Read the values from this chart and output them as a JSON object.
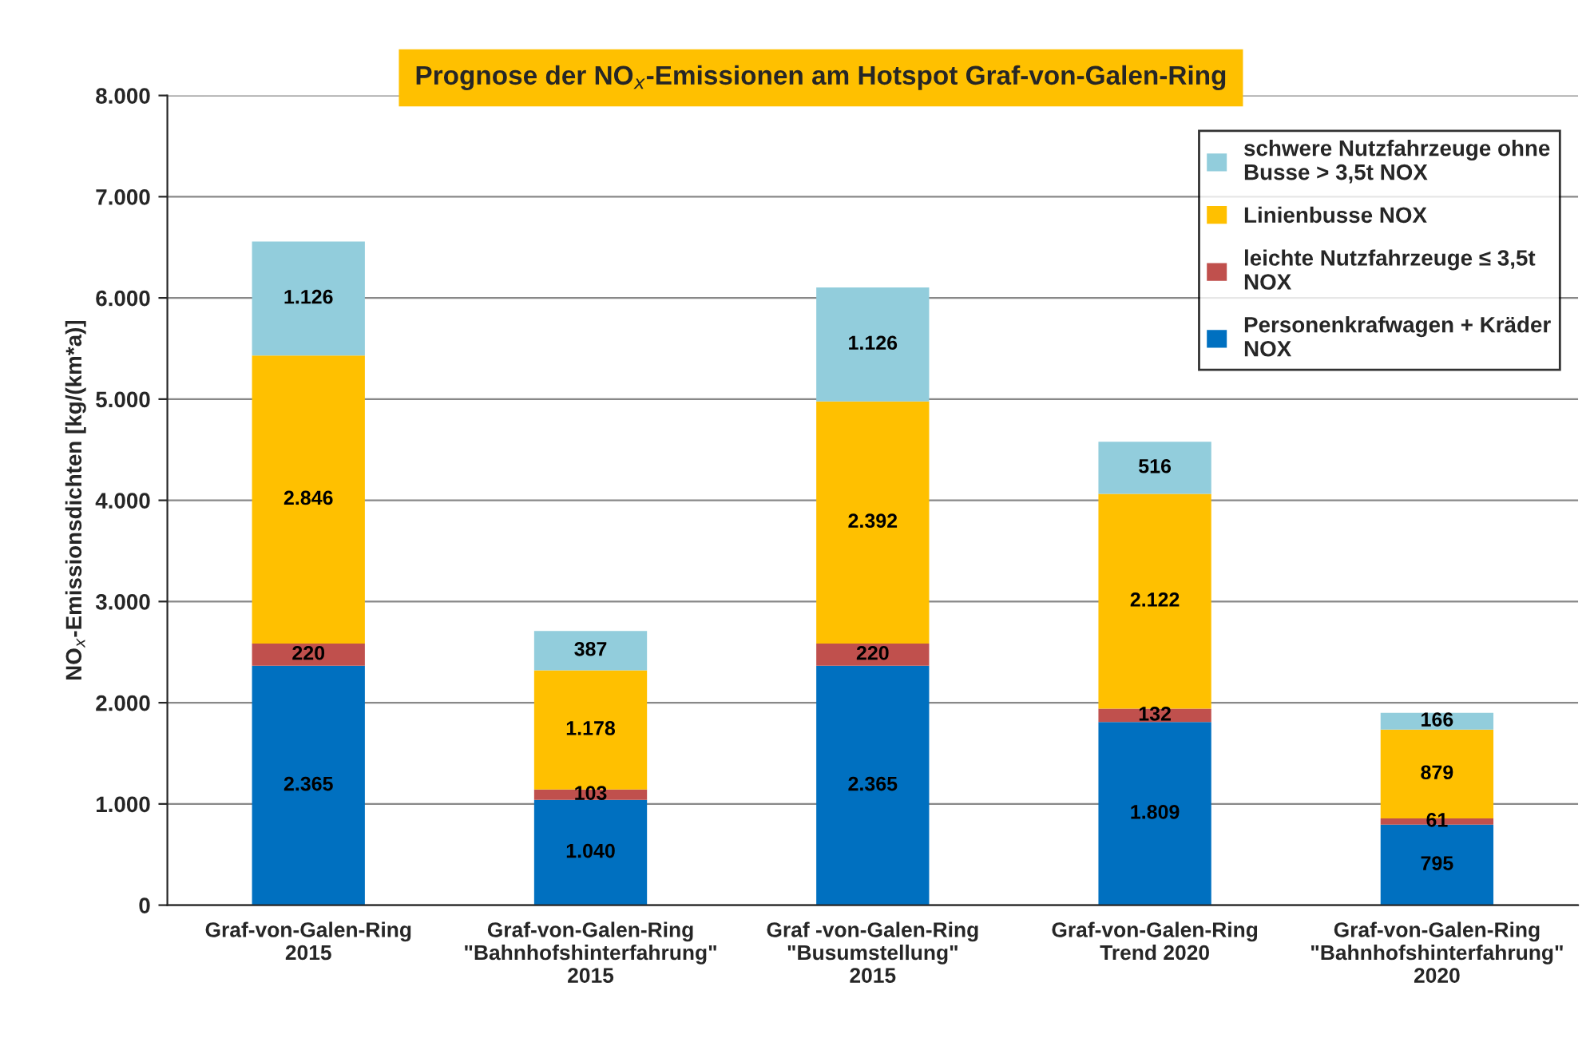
{
  "chart_data": {
    "type": "bar",
    "stacked": true,
    "title": "Prognose der NO$_{x}$-Emissionen am Hotspot Graf-von-Galen-Ring",
    "ylabel": "NO$_{x}$-Emissionsdichten [kg/(km*a)]",
    "categories": [
      "Graf-von-Galen-Ring\n2015",
      "Graf-von-Galen-Ring\n\"Bahnhofshinterfahrung\"\n2015",
      "Graf -von-Galen-Ring\n\"Busumstellung\"\n2015",
      "Graf-von-Galen-Ring\nTrend 2020",
      "Graf-von-Galen-Ring\n\"Bahnhofshinterfahrung\"\n2020"
    ],
    "series": [
      {
        "name": "Personenkrafwagen + Kräder\nNOX",
        "color": "#0070c0",
        "values": [
          2365,
          1040,
          2365,
          1809,
          795
        ],
        "value_labels": [
          "2.365",
          "1.040",
          "2.365",
          "1.809",
          "795"
        ]
      },
      {
        "name": "leichte Nutzfahrzeuge ≤ 3,5t\nNOX",
        "color": "#c0504d",
        "values": [
          220,
          103,
          220,
          132,
          61
        ],
        "value_labels": [
          "220",
          "103",
          "220",
          "132",
          "61"
        ]
      },
      {
        "name": "Linienbusse NOX",
        "color": "#ffc000",
        "values": [
          2846,
          1178,
          2392,
          2122,
          879
        ],
        "value_labels": [
          "2.846",
          "1.178",
          "2.392",
          "2.122",
          "879"
        ]
      },
      {
        "name": "schwere Nutzfahrzeuge ohne\nBusse > 3,5t NOX",
        "color": "#92cddc",
        "values": [
          1126,
          387,
          1126,
          516,
          166
        ],
        "value_labels": [
          "1.126",
          "387",
          "1.126",
          "516",
          "166"
        ]
      }
    ],
    "ylim": [
      0,
      8000
    ],
    "yticks": [
      {
        "value": 0,
        "label": "0"
      },
      {
        "value": 1000,
        "label": "1.000"
      },
      {
        "value": 2000,
        "label": "2.000"
      },
      {
        "value": 3000,
        "label": "3.000"
      },
      {
        "value": 4000,
        "label": "4.000"
      },
      {
        "value": 5000,
        "label": "5.000"
      },
      {
        "value": 6000,
        "label": "6.000"
      },
      {
        "value": 7000,
        "label": "7.000"
      },
      {
        "value": 8000,
        "label": "8.000"
      }
    ],
    "grid": "y",
    "legend": "top right"
  }
}
